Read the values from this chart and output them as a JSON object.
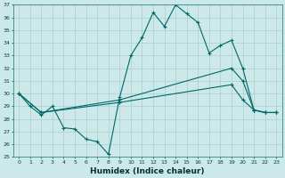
{
  "background_color": "#cce8e8",
  "grid_color": "#aacfcf",
  "line_color": "#006868",
  "x_label": "Humidex (Indice chaleur)",
  "ylim": [
    25,
    37
  ],
  "xlim": [
    -0.5,
    23.5
  ],
  "yticks": [
    25,
    26,
    27,
    28,
    29,
    30,
    31,
    32,
    33,
    34,
    35,
    36,
    37
  ],
  "xticks": [
    0,
    1,
    2,
    3,
    4,
    5,
    6,
    7,
    8,
    9,
    10,
    11,
    12,
    13,
    14,
    15,
    16,
    17,
    18,
    19,
    20,
    21,
    22,
    23
  ],
  "series1_jagged": {
    "x": [
      0,
      1,
      2,
      3,
      4,
      5,
      6,
      7,
      8,
      9,
      10,
      11,
      12,
      13,
      14,
      15,
      16,
      17,
      18,
      19,
      20,
      21,
      22,
      23
    ],
    "y": [
      30,
      29,
      28.3,
      29,
      27.3,
      27.2,
      26.4,
      26.2,
      25.2,
      29.7,
      33.0,
      34.4,
      36.4,
      35.3,
      37.0,
      36.3,
      35.6,
      33.2,
      33.8,
      34.2,
      32.0,
      28.7,
      28.5,
      28.5
    ]
  },
  "series2_upper": {
    "x": [
      0,
      2,
      9,
      19,
      20,
      21,
      22,
      23
    ],
    "y": [
      30,
      28.5,
      29.5,
      32.0,
      31.0,
      28.7,
      28.5,
      28.5
    ]
  },
  "series3_lower": {
    "x": [
      0,
      2,
      9,
      19,
      20,
      21,
      22,
      23
    ],
    "y": [
      30,
      28.5,
      29.3,
      30.7,
      29.5,
      28.7,
      28.5,
      28.5
    ]
  }
}
